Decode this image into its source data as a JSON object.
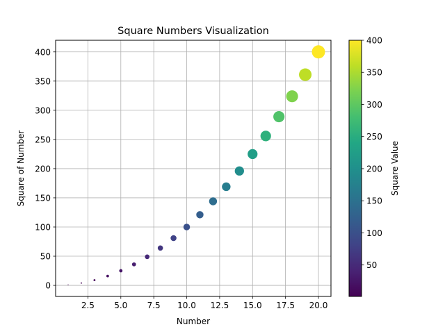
{
  "chart_data": {
    "type": "scatter",
    "title": "Square Numbers Visualization",
    "xlabel": "Number",
    "ylabel": "Square of Number",
    "x": [
      1,
      2,
      3,
      4,
      5,
      6,
      7,
      8,
      9,
      10,
      11,
      12,
      13,
      14,
      15,
      16,
      17,
      18,
      19,
      20
    ],
    "y": [
      1,
      4,
      9,
      16,
      25,
      36,
      49,
      64,
      81,
      100,
      121,
      144,
      169,
      196,
      225,
      256,
      289,
      324,
      361,
      400
    ],
    "xlim": [
      0.05,
      20.95
    ],
    "ylim": [
      -18.95,
      419.95
    ],
    "xticks": [
      2.5,
      5.0,
      7.5,
      10.0,
      12.5,
      15.0,
      17.5,
      20.0
    ],
    "xtick_labels": [
      "2.5",
      "5.0",
      "7.5",
      "10.0",
      "12.5",
      "15.0",
      "17.5",
      "20.0"
    ],
    "yticks": [
      0,
      50,
      100,
      150,
      200,
      250,
      300,
      350,
      400
    ],
    "ytick_labels": [
      "0",
      "50",
      "100",
      "150",
      "200",
      "250",
      "300",
      "350",
      "400"
    ],
    "grid": true,
    "marker_size_by": "y",
    "color_by": "y",
    "colormap": "viridis",
    "colorbar": {
      "label": "Square Value",
      "range": [
        1,
        400
      ],
      "ticks": [
        50,
        100,
        150,
        200,
        250,
        300,
        350,
        400
      ],
      "tick_labels": [
        "50",
        "100",
        "150",
        "200",
        "250",
        "300",
        "350",
        "400"
      ]
    }
  }
}
